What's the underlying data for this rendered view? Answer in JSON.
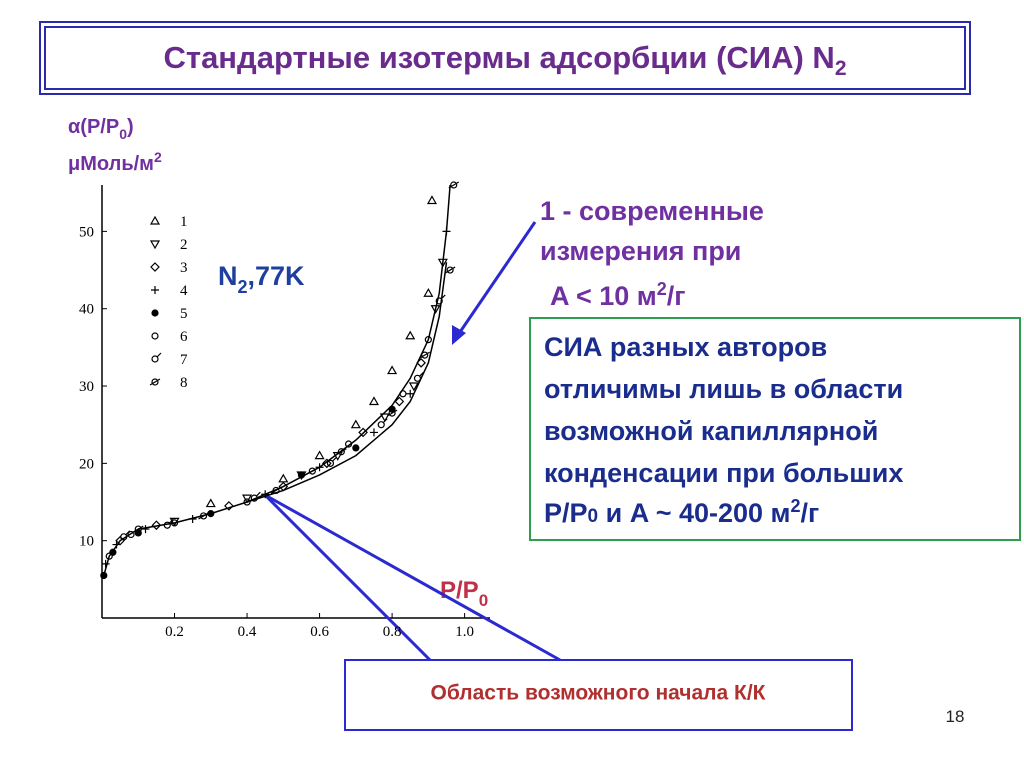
{
  "title": [
    "Стандартные изотермы адсорбции (СИА) N",
    "2"
  ],
  "chart_data": {
    "type": "scatter",
    "ylabel": [
      "α(P/P",
      "0",
      ")"
    ],
    "yunit": [
      "μМоль/м",
      "2"
    ],
    "xlabel": [
      "P/P",
      "0"
    ],
    "annotation": [
      "N",
      "2",
      ",77K"
    ],
    "xlim": [
      0,
      1.07
    ],
    "ylim": [
      0,
      56
    ],
    "xticks": [
      0.2,
      0.4,
      0.6,
      {
        "value": 0.8,
        "label": "0.8"
      },
      {
        "value": 1,
        "label": "1.0"
      }
    ],
    "yticks": [
      10,
      20,
      30,
      40,
      50
    ],
    "series": [
      {
        "name": "1",
        "marker": "triangle-up",
        "x": [
          0.3,
          0.5,
          0.6,
          0.7,
          0.75,
          0.8,
          0.85,
          0.9,
          0.91
        ],
        "values": [
          14.8,
          18,
          21,
          25,
          28,
          32,
          36.5,
          42,
          54
        ]
      },
      {
        "name": "2",
        "marker": "triangle-down",
        "x": [
          0.2,
          0.4,
          0.55,
          0.65,
          0.78,
          0.86,
          0.92,
          0.94
        ],
        "values": [
          12.5,
          15.5,
          18.5,
          21,
          26,
          30,
          40,
          46
        ]
      },
      {
        "name": "3",
        "marker": "diamond",
        "x": [
          0.05,
          0.15,
          0.35,
          0.5,
          0.62,
          0.72,
          0.82,
          0.88
        ],
        "values": [
          10,
          12,
          14.5,
          17,
          20,
          24,
          28,
          33
        ]
      },
      {
        "name": "4",
        "marker": "plus",
        "x": [
          0.01,
          0.04,
          0.12,
          0.25,
          0.45,
          0.6,
          0.75,
          0.85,
          0.95
        ],
        "values": [
          7,
          9.5,
          11.5,
          12.8,
          16,
          19.5,
          24,
          29,
          50
        ]
      },
      {
        "name": "5",
        "marker": "dot",
        "x": [
          0.005,
          0.03,
          0.1,
          0.3,
          0.55,
          0.7,
          0.8
        ],
        "values": [
          5.5,
          8.5,
          11,
          13.5,
          18.5,
          22,
          27
        ]
      },
      {
        "name": "6",
        "marker": "circle",
        "x": [
          0.02,
          0.08,
          0.2,
          0.4,
          0.58,
          0.68,
          0.83,
          0.9
        ],
        "values": [
          8,
          10.8,
          12.3,
          15,
          19,
          22.5,
          29,
          36
        ]
      },
      {
        "name": "7",
        "marker": "circle-bar",
        "x": [
          0.06,
          0.18,
          0.42,
          0.63,
          0.77,
          0.87,
          0.93
        ],
        "values": [
          10.5,
          12,
          15.5,
          20,
          25,
          31,
          41
        ]
      },
      {
        "name": "8",
        "marker": "circle-cross",
        "x": [
          0.1,
          0.28,
          0.48,
          0.66,
          0.8,
          0.89,
          0.96,
          0.97
        ],
        "values": [
          11.5,
          13.2,
          16.5,
          21.5,
          26.5,
          34,
          45,
          56
        ]
      }
    ],
    "curves": [
      {
        "x": [
          0.005,
          0.02,
          0.05,
          0.1,
          0.2,
          0.3,
          0.4,
          0.5,
          0.6,
          0.7,
          0.8,
          0.85,
          0.9,
          0.93,
          0.95,
          0.96
        ],
        "values": [
          5.5,
          8,
          10,
          11.5,
          12.3,
          13.5,
          15,
          17,
          19.5,
          23,
          27.5,
          31,
          36,
          42,
          50,
          56
        ]
      },
      {
        "x": [
          0.4,
          0.5,
          0.6,
          0.7,
          0.8,
          0.85,
          0.9,
          0.93,
          0.95
        ],
        "values": [
          15,
          16.5,
          18.5,
          21,
          25,
          28,
          33,
          39,
          46
        ]
      }
    ]
  },
  "callout": {
    "lines": [
      "1 - современные",
      "измерения при"
    ],
    "area": [
      "A < 10 м",
      "2",
      "/г"
    ]
  },
  "box": {
    "lines": [
      "СИА разных авторов",
      "отличимы лишь в области",
      "возможной капиллярной",
      "конденсации при больших"
    ],
    "last": [
      "P/P",
      "0",
      " и  A ~ 40-200 м",
      "2",
      "/г"
    ]
  },
  "bottom_box": "Область возможного начала К/К",
  "page_number": "18"
}
